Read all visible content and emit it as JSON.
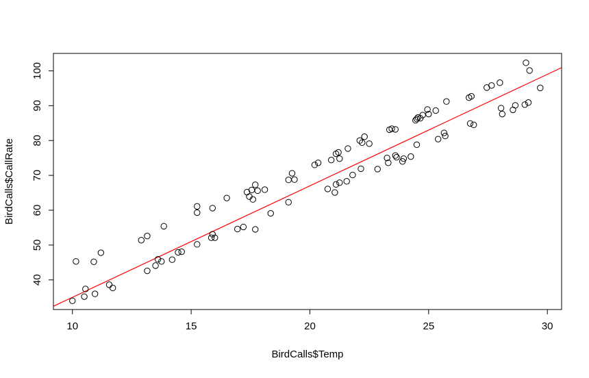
{
  "chart_data": {
    "type": "scatter",
    "title": "",
    "xlabel": "BirdCalls$Temp",
    "ylabel": "BirdCalls$CallRate",
    "xlim": [
      9.2,
      30.6
    ],
    "ylim": [
      31.5,
      105.0
    ],
    "x_ticks": [
      10,
      15,
      20,
      25,
      30
    ],
    "y_ticks": [
      40,
      50,
      60,
      70,
      80,
      90,
      100
    ],
    "grid": false,
    "legend": "none",
    "point_color": "#000000",
    "line_color": "#ff0000",
    "series": [
      {
        "values": [
          [
            10.0,
            34.0
          ],
          [
            10.15,
            45.3
          ],
          [
            10.5,
            35.2
          ],
          [
            10.55,
            37.4
          ],
          [
            10.95,
            36.0
          ],
          [
            10.9,
            45.2
          ],
          [
            11.2,
            47.8
          ],
          [
            11.55,
            38.6
          ],
          [
            11.7,
            37.7
          ],
          [
            12.9,
            51.4
          ],
          [
            13.15,
            42.6
          ],
          [
            13.15,
            52.6
          ],
          [
            13.5,
            44.1
          ],
          [
            13.6,
            45.9
          ],
          [
            13.75,
            45.3
          ],
          [
            13.85,
            55.4
          ],
          [
            14.2,
            45.8
          ],
          [
            14.45,
            47.9
          ],
          [
            14.6,
            48.1
          ],
          [
            15.25,
            61.1
          ],
          [
            15.25,
            59.3
          ],
          [
            15.25,
            50.2
          ],
          [
            15.85,
            52.1
          ],
          [
            15.9,
            53.1
          ],
          [
            15.9,
            60.6
          ],
          [
            16.0,
            52.1
          ],
          [
            16.5,
            63.5
          ],
          [
            16.95,
            54.6
          ],
          [
            17.2,
            55.2
          ],
          [
            17.35,
            65.2
          ],
          [
            17.45,
            63.9
          ],
          [
            17.55,
            65.8
          ],
          [
            17.6,
            63.1
          ],
          [
            17.7,
            67.3
          ],
          [
            17.7,
            54.5
          ],
          [
            17.8,
            65.6
          ],
          [
            18.1,
            65.9
          ],
          [
            18.35,
            59.1
          ],
          [
            19.1,
            68.7
          ],
          [
            19.1,
            62.3
          ],
          [
            19.25,
            70.6
          ],
          [
            19.35,
            68.8
          ],
          [
            20.2,
            73.0
          ],
          [
            20.35,
            73.6
          ],
          [
            20.75,
            66.1
          ],
          [
            20.9,
            74.4
          ],
          [
            21.05,
            65.1
          ],
          [
            21.1,
            67.4
          ],
          [
            21.1,
            76.2
          ],
          [
            21.2,
            76.6
          ],
          [
            21.25,
            74.8
          ],
          [
            21.25,
            67.9
          ],
          [
            21.55,
            68.3
          ],
          [
            21.6,
            77.7
          ],
          [
            21.8,
            70.1
          ],
          [
            22.1,
            80.0
          ],
          [
            22.15,
            71.9
          ],
          [
            22.2,
            79.4
          ],
          [
            22.3,
            81.1
          ],
          [
            22.5,
            79.1
          ],
          [
            22.85,
            71.8
          ],
          [
            23.25,
            75.0
          ],
          [
            23.3,
            73.6
          ],
          [
            23.35,
            83.1
          ],
          [
            23.45,
            83.4
          ],
          [
            23.6,
            83.2
          ],
          [
            23.6,
            75.7
          ],
          [
            23.65,
            75.2
          ],
          [
            23.9,
            74.0
          ],
          [
            23.95,
            74.8
          ],
          [
            24.25,
            75.4
          ],
          [
            24.45,
            85.8
          ],
          [
            24.5,
            86.2
          ],
          [
            24.5,
            78.8
          ],
          [
            24.55,
            86.6
          ],
          [
            24.65,
            86.4
          ],
          [
            24.75,
            87.3
          ],
          [
            24.95,
            88.9
          ],
          [
            25.0,
            87.6
          ],
          [
            25.3,
            88.6
          ],
          [
            25.4,
            80.4
          ],
          [
            25.65,
            82.2
          ],
          [
            25.7,
            81.3
          ],
          [
            25.75,
            91.2
          ],
          [
            26.7,
            92.3
          ],
          [
            26.75,
            84.9
          ],
          [
            26.8,
            92.7
          ],
          [
            26.9,
            84.5
          ],
          [
            27.45,
            95.2
          ],
          [
            27.65,
            95.8
          ],
          [
            28.0,
            96.6
          ],
          [
            28.05,
            89.3
          ],
          [
            28.1,
            87.6
          ],
          [
            28.55,
            88.8
          ],
          [
            28.65,
            90.1
          ],
          [
            29.05,
            90.3
          ],
          [
            29.1,
            102.3
          ],
          [
            29.2,
            90.9
          ],
          [
            29.25,
            100.1
          ],
          [
            29.7,
            95.1
          ]
        ]
      }
    ],
    "fit_line": {
      "intercept": 3.0,
      "slope": 3.2
    }
  }
}
